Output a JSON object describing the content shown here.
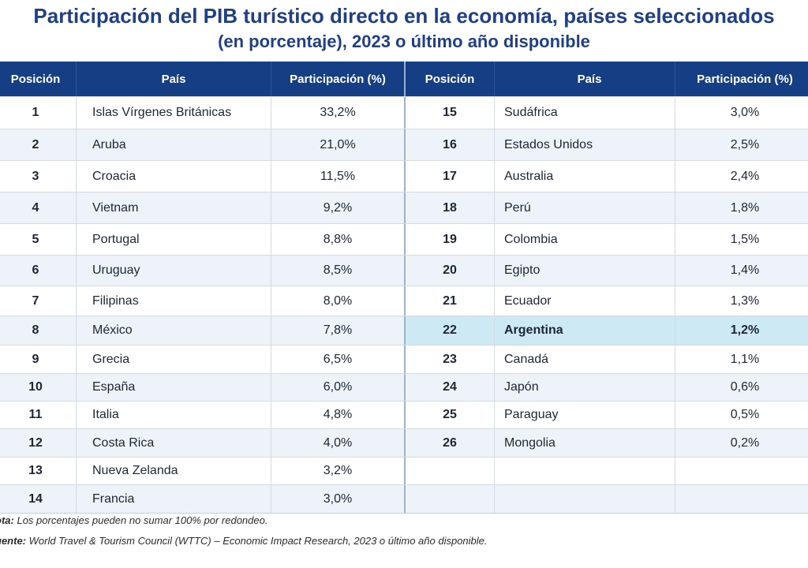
{
  "title": "Participación del PIB turístico directo en la economía, países seleccionados",
  "subtitle": "(en porcentaje), 2023 o último año disponible",
  "headers": {
    "position": "Posición",
    "country": "País",
    "share": "Participación (%)"
  },
  "left_rows": [
    {
      "pos": "1",
      "country": "Islas Vírgenes Británicas",
      "share": "33,2%"
    },
    {
      "pos": "2",
      "country": "Aruba",
      "share": "21,0%"
    },
    {
      "pos": "3",
      "country": "Croacia",
      "share": "11,5%"
    },
    {
      "pos": "4",
      "country": "Vietnam",
      "share": "9,2%"
    },
    {
      "pos": "5",
      "country": "Portugal",
      "share": "8,8%"
    },
    {
      "pos": "6",
      "country": "Uruguay",
      "share": "8,5%"
    },
    {
      "pos": "7",
      "country": "Filipinas",
      "share": "8,0%"
    },
    {
      "pos": "8",
      "country": "México",
      "share": "7,8%"
    },
    {
      "pos": "9",
      "country": "Grecia",
      "share": "6,5%"
    },
    {
      "pos": "10",
      "country": "España",
      "share": "6,0%"
    },
    {
      "pos": "11",
      "country": "Italia",
      "share": "4,8%"
    },
    {
      "pos": "12",
      "country": "Costa Rica",
      "share": "4,0%"
    },
    {
      "pos": "13",
      "country": "Nueva Zelanda",
      "share": "3,2%"
    },
    {
      "pos": "14",
      "country": "Francia",
      "share": "3,0%"
    }
  ],
  "right_rows": [
    {
      "pos": "15",
      "country": "Sudáfrica",
      "share": "3,0%"
    },
    {
      "pos": "16",
      "country": "Estados Unidos",
      "share": "2,5%"
    },
    {
      "pos": "17",
      "country": "Australia",
      "share": "2,4%"
    },
    {
      "pos": "18",
      "country": "Perú",
      "share": "1,8%"
    },
    {
      "pos": "19",
      "country": "Colombia",
      "share": "1,5%"
    },
    {
      "pos": "20",
      "country": "Egipto",
      "share": "1,4%"
    },
    {
      "pos": "21",
      "country": "Ecuador",
      "share": "1,3%"
    },
    {
      "pos": "22",
      "country": "Argentina",
      "share": "1,2%",
      "highlight": true
    },
    {
      "pos": "23",
      "country": "Canadá",
      "share": "1,1%"
    },
    {
      "pos": "24",
      "country": "Japón",
      "share": "0,6%"
    },
    {
      "pos": "25",
      "country": "Paraguay",
      "share": "0,5%"
    },
    {
      "pos": "26",
      "country": "Mongolia",
      "share": "0,2%"
    },
    {
      "pos": "",
      "country": "",
      "share": ""
    },
    {
      "pos": "",
      "country": "",
      "share": ""
    }
  ],
  "note_label": "ota:",
  "note_text": "Los porcentajes pueden no sumar 100% por redondeo.",
  "source_label": "uente:",
  "source_text": "World Travel & Tourism Council (WTTC) – Economic Impact Research, 2023 o último año disponible.",
  "colors": {
    "header_bg": "#153e84",
    "title": "#1f3f86",
    "highlight_bg": "#cde9f3",
    "stripe_bg": "#eef3f9"
  }
}
